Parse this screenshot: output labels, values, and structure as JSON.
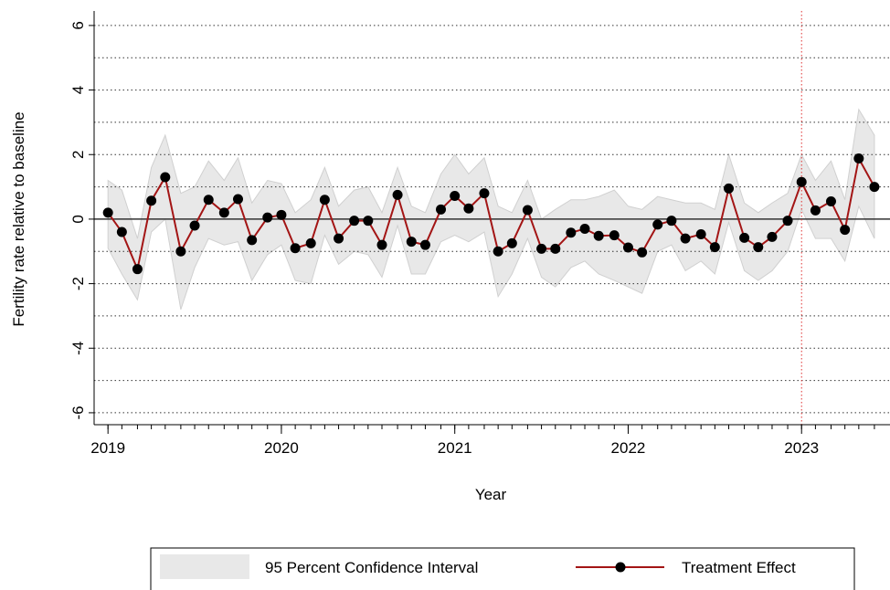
{
  "chart_data": {
    "type": "line",
    "x_label": "Year",
    "y_label": "Fertility rate relative to baseline",
    "x": [
      2019.0,
      2019.08,
      2019.17,
      2019.25,
      2019.33,
      2019.42,
      2019.5,
      2019.58,
      2019.67,
      2019.75,
      2019.83,
      2019.92,
      2020.0,
      2020.08,
      2020.17,
      2020.25,
      2020.33,
      2020.42,
      2020.5,
      2020.58,
      2020.67,
      2020.75,
      2020.83,
      2020.92,
      2021.0,
      2021.08,
      2021.17,
      2021.25,
      2021.33,
      2021.42,
      2021.5,
      2021.58,
      2021.67,
      2021.75,
      2021.83,
      2021.92,
      2022.0,
      2022.08,
      2022.17,
      2022.25,
      2022.33,
      2022.42,
      2022.5,
      2022.58,
      2022.67,
      2022.75,
      2022.83,
      2022.92,
      2023.0,
      2023.08,
      2023.17,
      2023.25,
      2023.33,
      2023.42
    ],
    "series": [
      {
        "name": "Treatment Effect",
        "color": "#a31515",
        "marker_color": "#000000",
        "values": [
          0.2,
          -0.4,
          -1.55,
          0.57,
          1.3,
          -1.0,
          -0.2,
          0.6,
          0.2,
          0.62,
          -0.65,
          0.05,
          0.13,
          -0.9,
          -0.75,
          0.6,
          -0.6,
          -0.05,
          -0.05,
          -0.8,
          0.75,
          -0.7,
          -0.8,
          0.3,
          0.72,
          0.33,
          0.8,
          -1.0,
          -0.75,
          0.28,
          -0.92,
          -0.92,
          -0.42,
          -0.3,
          -0.52,
          -0.5,
          -0.88,
          -1.03,
          -0.17,
          -0.05,
          -0.6,
          -0.47,
          -0.87,
          0.95,
          -0.58,
          -0.87,
          -0.55,
          -0.05,
          1.15,
          0.27,
          0.55,
          -0.33,
          1.88,
          1.0
        ]
      }
    ],
    "band": {
      "name": "95 Percent Confidence Interval",
      "color": "#e8e8e8",
      "edge": "#d0d0d0",
      "upper": [
        1.2,
        0.9,
        -0.6,
        1.6,
        2.6,
        0.8,
        1.0,
        1.8,
        1.2,
        1.9,
        0.5,
        1.2,
        1.1,
        0.2,
        0.6,
        1.6,
        0.4,
        0.9,
        1.0,
        0.2,
        1.6,
        0.4,
        0.2,
        1.4,
        2.0,
        1.4,
        1.9,
        0.4,
        0.2,
        1.2,
        0.0,
        0.3,
        0.6,
        0.6,
        0.7,
        0.9,
        0.4,
        0.3,
        0.7,
        0.6,
        0.5,
        0.5,
        0.3,
        2.0,
        0.5,
        0.2,
        0.5,
        0.8,
        2.0,
        1.2,
        1.8,
        0.6,
        3.4,
        2.6
      ],
      "lower": [
        -0.9,
        -1.7,
        -2.5,
        -0.4,
        0.0,
        -2.8,
        -1.5,
        -0.6,
        -0.8,
        -0.7,
        -1.9,
        -1.1,
        -0.8,
        -1.9,
        -2.0,
        -0.5,
        -1.4,
        -1.0,
        -1.1,
        -1.8,
        -0.2,
        -1.7,
        -1.7,
        -0.7,
        -0.5,
        -0.7,
        -0.4,
        -2.4,
        -1.7,
        -0.6,
        -1.8,
        -2.1,
        -1.5,
        -1.3,
        -1.7,
        -1.9,
        -2.1,
        -2.3,
        -1.0,
        -0.8,
        -1.6,
        -1.3,
        -1.7,
        -0.1,
        -1.6,
        -1.9,
        -1.6,
        -1.0,
        0.3,
        -0.6,
        -0.6,
        -1.3,
        0.4,
        -0.6
      ]
    },
    "xlim": [
      2018.92,
      2023.51
    ],
    "xticks": [
      2019,
      2020,
      2021,
      2022,
      2023
    ],
    "ylim": [
      -6.37,
      6.45
    ],
    "yticks": [
      -6,
      -4,
      -2,
      0,
      2,
      4,
      6
    ],
    "yminor": [
      -5,
      -3,
      -1,
      1,
      3,
      5
    ],
    "grid": true,
    "hline": 0,
    "vline": {
      "value": 2023,
      "color": "#e03030"
    },
    "legend": "bottom"
  }
}
